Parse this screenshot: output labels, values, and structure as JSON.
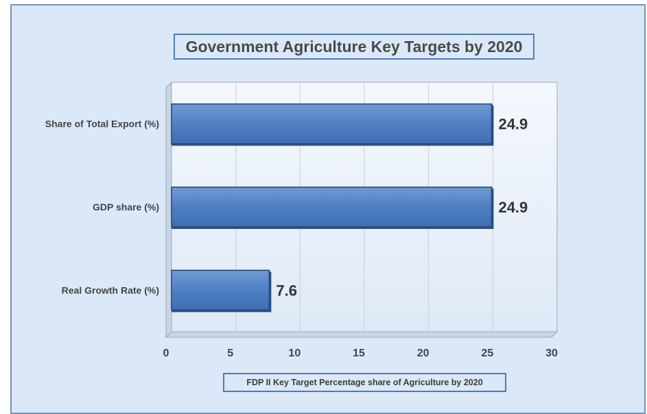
{
  "chart_data": {
    "type": "bar",
    "orientation": "horizontal",
    "title": "Government Agriculture Key Targets by 2020",
    "xlabel": "FDP II Key Target Percentage share of Agriculture by 2020",
    "ylabel": "",
    "categories": [
      "Share of Total Export (%)",
      "GDP share (%)",
      "Real Growth Rate (%)"
    ],
    "values": [
      24.9,
      24.9,
      7.6
    ],
    "data_labels": [
      "24.9",
      "24.9",
      "7.6"
    ],
    "xlim": [
      0,
      30
    ],
    "ticks": [
      0,
      5,
      10,
      15,
      20,
      25,
      30
    ],
    "tick_labels": [
      "0",
      "5",
      "10",
      "15",
      "20",
      "25",
      "30"
    ],
    "grid": true,
    "legend": "none",
    "colors": {
      "bar": "#4f80c4",
      "bar_border": "#23426e",
      "background": "#dbe8f8",
      "plot_area": "#ebf2fb",
      "frame_border": "#7393b8",
      "box_border": "#4e7ab5"
    }
  }
}
